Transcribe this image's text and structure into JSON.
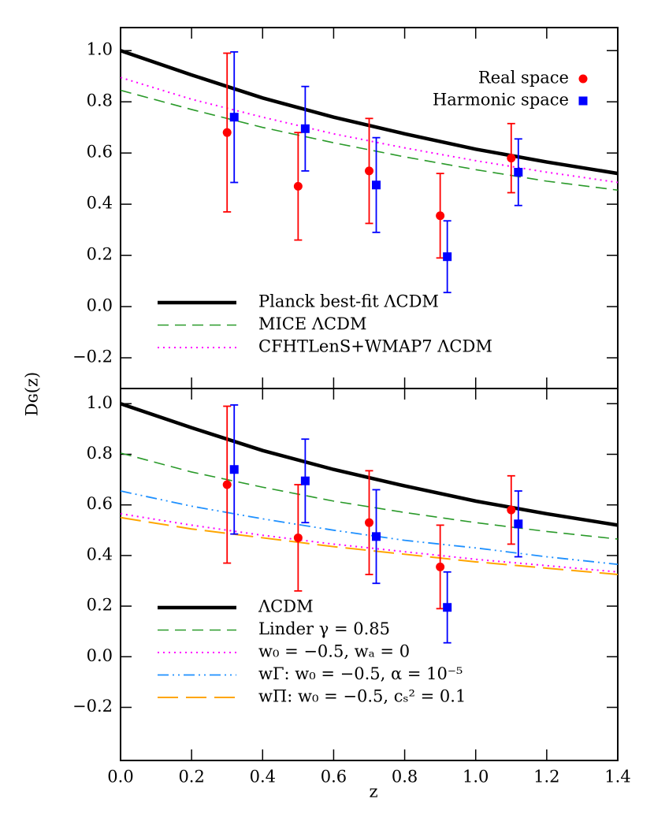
{
  "chart_data": [
    {
      "type": "line",
      "xlim": [
        0,
        1.4
      ],
      "xticks": [
        {
          "value": 0,
          "label": "0.0"
        },
        0.2,
        0.4,
        0.6,
        0.8,
        {
          "value": 1,
          "label": "1.0"
        },
        1.2,
        1.4
      ],
      "show_xtick_labels": false,
      "ylim": [
        -0.32,
        1.09
      ],
      "yticks": [
        {
          "value": -0.2,
          "label": "−0.2"
        },
        {
          "value": 0,
          "label": "0.0"
        },
        0.2,
        0.4,
        0.6,
        0.8,
        {
          "value": 1,
          "label": "1.0"
        }
      ],
      "legend_loc": "lower left",
      "points_legend_loc": "upper right",
      "series": [
        {
          "name": "Planck best-fit ΛCDM",
          "color": "#000000",
          "style": "solid",
          "x": [
            0,
            0.2,
            0.4,
            0.6,
            0.8,
            1.0,
            1.2,
            1.4
          ],
          "values": [
            1.0,
            0.905,
            0.815,
            0.74,
            0.675,
            0.615,
            0.565,
            0.52
          ]
        },
        {
          "name": "MICE ΛCDM",
          "color": "#2a9a2a",
          "style": "dashed",
          "x": [
            0,
            0.2,
            0.4,
            0.6,
            0.8,
            1.0,
            1.2,
            1.4
          ],
          "values": [
            0.845,
            0.77,
            0.7,
            0.64,
            0.585,
            0.535,
            0.49,
            0.455
          ]
        },
        {
          "name": "CFHTLenS+WMAP7 ΛCDM",
          "color": "#ff00ff",
          "style": "dotted",
          "x": [
            0,
            0.2,
            0.4,
            0.6,
            0.8,
            1.0,
            1.2,
            1.4
          ],
          "values": [
            0.895,
            0.81,
            0.74,
            0.675,
            0.62,
            0.57,
            0.525,
            0.485
          ]
        },
        {
          "name": "Real space",
          "color": "#ff0000",
          "marker": "circle",
          "x": [
            0.3,
            0.5,
            0.7,
            0.9,
            1.1
          ],
          "values": [
            0.68,
            0.47,
            0.53,
            0.355,
            0.58
          ],
          "errors": [
            0.31,
            0.21,
            0.205,
            0.165,
            0.135
          ]
        },
        {
          "name": "Harmonic space",
          "color": "#0000ff",
          "marker": "square",
          "x": [
            0.32,
            0.52,
            0.72,
            0.92,
            1.12
          ],
          "values": [
            0.74,
            0.695,
            0.475,
            0.195,
            0.525
          ],
          "errors": [
            0.255,
            0.165,
            0.185,
            0.14,
            0.13
          ]
        }
      ]
    },
    {
      "type": "line",
      "xlabel": "z",
      "ylabel": "Dɢ(z)",
      "xlim": [
        0,
        1.4
      ],
      "xticks": [
        {
          "value": 0,
          "label": "0.0"
        },
        0.2,
        0.4,
        0.6,
        0.8,
        {
          "value": 1,
          "label": "1.0"
        },
        1.2,
        1.4
      ],
      "show_xtick_labels": true,
      "ylim": [
        -0.41,
        1.06
      ],
      "yticks": [
        {
          "value": -0.2,
          "label": "−0.2"
        },
        {
          "value": 0,
          "label": "0.0"
        },
        0.2,
        0.4,
        0.6,
        0.8,
        {
          "value": 1,
          "label": "1.0"
        }
      ],
      "legend_loc": "lower left",
      "series": [
        {
          "name": "ΛCDM",
          "color": "#000000",
          "style": "solid",
          "x": [
            0,
            0.2,
            0.4,
            0.6,
            0.8,
            1.0,
            1.2,
            1.4
          ],
          "values": [
            1.0,
            0.905,
            0.815,
            0.74,
            0.675,
            0.615,
            0.565,
            0.52
          ]
        },
        {
          "name": "Linder γ = 0.85",
          "color": "#2a9a2a",
          "style": "dashed",
          "x": [
            0,
            0.2,
            0.4,
            0.6,
            0.8,
            1.0,
            1.2,
            1.4
          ],
          "values": [
            0.805,
            0.73,
            0.67,
            0.615,
            0.57,
            0.53,
            0.495,
            0.465
          ]
        },
        {
          "name": "w₀ = −0.5, wₐ = 0",
          "color": "#ff00ff",
          "style": "dotted",
          "x": [
            0,
            0.2,
            0.4,
            0.6,
            0.8,
            1.0,
            1.2,
            1.4
          ],
          "values": [
            0.565,
            0.52,
            0.48,
            0.445,
            0.415,
            0.385,
            0.36,
            0.335
          ]
        },
        {
          "name": "wΓ: w₀ = −0.5, α = 10⁻⁵",
          "color": "#1e90ff",
          "style": "dashdotdot",
          "x": [
            0,
            0.2,
            0.4,
            0.6,
            0.8,
            1.0,
            1.2,
            1.4
          ],
          "values": [
            0.655,
            0.595,
            0.545,
            0.5,
            0.46,
            0.43,
            0.395,
            0.365
          ]
        },
        {
          "name": "wΠ: w₀ = −0.5, cₛ² = 0.1",
          "color": "#ffa500",
          "style": "longdash",
          "x": [
            0,
            0.2,
            0.4,
            0.6,
            0.8,
            1.0,
            1.2,
            1.4
          ],
          "values": [
            0.55,
            0.505,
            0.47,
            0.435,
            0.405,
            0.375,
            0.35,
            0.325
          ]
        },
        {
          "color": "#ff0000",
          "marker": "circle",
          "x": [
            0.3,
            0.5,
            0.7,
            0.9,
            1.1
          ],
          "values": [
            0.68,
            0.47,
            0.53,
            0.355,
            0.58
          ],
          "errors": [
            0.31,
            0.21,
            0.205,
            0.165,
            0.135
          ]
        },
        {
          "color": "#0000ff",
          "marker": "square",
          "x": [
            0.32,
            0.52,
            0.72,
            0.92,
            1.12
          ],
          "values": [
            0.74,
            0.695,
            0.475,
            0.195,
            0.525
          ],
          "errors": [
            0.255,
            0.165,
            0.185,
            0.14,
            0.13
          ]
        }
      ]
    }
  ]
}
